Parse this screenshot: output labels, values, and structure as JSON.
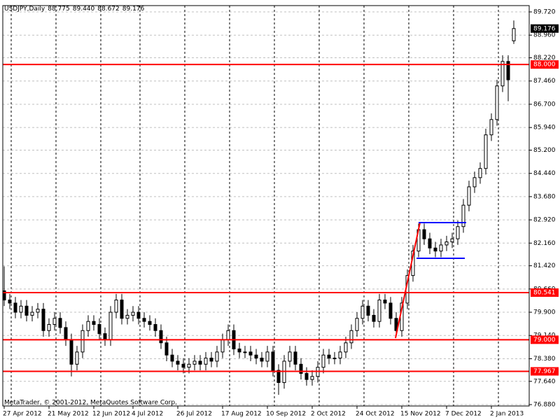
{
  "chart_data": {
    "type": "candlestick",
    "title": "USDJPY,Daily",
    "header_values": [
      {
        "value": 88.775,
        "label": "88.775"
      },
      {
        "value": 89.44,
        "label": "89.440"
      },
      {
        "value": 88.672,
        "label": "88.672"
      },
      {
        "value": 89.176,
        "label": "89.176"
      }
    ],
    "footer": "MetaTrader, © 2001-2012, MetaQuotes Software Corp.",
    "bull_color": "#ffffff",
    "bear_color": "#000000",
    "outline_color": "#000000",
    "open": [
      80.6,
      80.3,
      80.2,
      79.9,
      80.1,
      79.8,
      79.9,
      80.0,
      79.3,
      79.5,
      79.7,
      79.4,
      79.0,
      78.2,
      78.6,
      79.3,
      79.6,
      79.5,
      79.2,
      79.0,
      79.9,
      80.3,
      79.7,
      79.8,
      79.9,
      79.7,
      79.6,
      79.5,
      79.3,
      78.9,
      78.5,
      78.3,
      78.2,
      78.1,
      78.2,
      78.3,
      78.2,
      78.4,
      78.3,
      78.6,
      79.0,
      79.3,
      78.7,
      78.6,
      78.6,
      78.5,
      78.4,
      78.3,
      78.6,
      78.0,
      77.6,
      78.3,
      78.6,
      78.2,
      77.9,
      77.7,
      77.8,
      78.1,
      78.5,
      78.4,
      78.4,
      78.6,
      78.9,
      79.3,
      79.7,
      80.1,
      79.8,
      79.6,
      80.3,
      80.2,
      79.7,
      79.3,
      80.2,
      81.1,
      81.9,
      82.6,
      82.3,
      82.0,
      81.9,
      82.1,
      82.2,
      82.3,
      82.7,
      83.4,
      84.0,
      84.3,
      84.6,
      85.7,
      86.2,
      87.3,
      88.1,
      88.775
    ],
    "high": [
      81.4,
      80.5,
      80.4,
      80.3,
      80.3,
      80.1,
      80.2,
      80.2,
      79.7,
      79.9,
      79.9,
      79.6,
      79.2,
      78.8,
      79.5,
      79.8,
      79.8,
      79.7,
      79.4,
      80.1,
      80.5,
      80.5,
      80.0,
      80.1,
      80.1,
      79.9,
      79.8,
      79.7,
      79.5,
      79.1,
      78.7,
      78.5,
      78.4,
      78.4,
      78.5,
      78.5,
      78.6,
      78.6,
      78.8,
      79.2,
      79.5,
      79.5,
      78.9,
      78.8,
      78.8,
      78.7,
      78.6,
      78.8,
      78.8,
      78.2,
      78.5,
      78.8,
      78.8,
      78.4,
      78.1,
      78.0,
      78.3,
      78.7,
      78.7,
      78.6,
      78.8,
      79.1,
      79.5,
      79.9,
      80.3,
      80.3,
      80.0,
      80.5,
      80.5,
      80.4,
      79.9,
      80.4,
      81.3,
      82.1,
      82.8,
      82.8,
      82.5,
      82.2,
      82.3,
      82.4,
      82.5,
      82.9,
      83.6,
      84.2,
      84.5,
      84.8,
      85.9,
      86.4,
      87.5,
      88.3,
      88.3,
      89.44
    ],
    "low": [
      80.1,
      80.0,
      79.7,
      79.7,
      79.6,
      79.6,
      79.7,
      79.1,
      79.1,
      79.3,
      79.2,
      78.8,
      77.8,
      78.0,
      78.4,
      79.1,
      79.3,
      79.0,
      78.8,
      78.8,
      79.7,
      79.5,
      79.5,
      79.6,
      79.5,
      79.4,
      79.3,
      79.1,
      78.7,
      78.3,
      78.1,
      78.0,
      77.9,
      77.9,
      78.0,
      78.0,
      78.0,
      78.1,
      78.1,
      78.4,
      78.8,
      78.5,
      78.4,
      78.4,
      78.3,
      78.2,
      78.1,
      78.1,
      77.8,
      77.2,
      77.4,
      78.1,
      78.0,
      77.7,
      77.5,
      77.5,
      77.6,
      77.9,
      78.2,
      78.2,
      78.2,
      78.4,
      78.7,
      79.1,
      79.5,
      79.6,
      79.4,
      79.4,
      80.0,
      79.5,
      79.1,
      79.1,
      80.0,
      80.9,
      81.7,
      82.1,
      81.8,
      81.7,
      81.7,
      81.9,
      82.0,
      82.1,
      82.5,
      83.2,
      83.8,
      84.1,
      84.4,
      85.5,
      86.0,
      87.1,
      86.8,
      88.672
    ],
    "close": [
      80.3,
      80.2,
      79.9,
      80.1,
      79.8,
      79.9,
      80.0,
      79.3,
      79.5,
      79.7,
      79.4,
      79.0,
      78.2,
      78.6,
      79.3,
      79.6,
      79.5,
      79.2,
      79.0,
      79.9,
      80.3,
      79.7,
      79.8,
      79.9,
      79.7,
      79.6,
      79.5,
      79.3,
      78.9,
      78.5,
      78.3,
      78.2,
      78.1,
      78.2,
      78.3,
      78.2,
      78.4,
      78.3,
      78.6,
      79.0,
      79.3,
      78.7,
      78.6,
      78.6,
      78.5,
      78.4,
      78.3,
      78.6,
      78.0,
      77.6,
      78.3,
      78.6,
      78.2,
      77.9,
      77.7,
      77.8,
      78.1,
      78.5,
      78.4,
      78.4,
      78.6,
      78.9,
      79.3,
      79.7,
      80.1,
      79.8,
      79.6,
      80.3,
      80.2,
      79.7,
      79.3,
      80.2,
      81.1,
      81.9,
      82.6,
      82.3,
      82.0,
      81.9,
      82.1,
      82.2,
      82.3,
      82.7,
      83.4,
      84.0,
      84.3,
      84.6,
      85.7,
      86.2,
      87.3,
      88.1,
      87.5,
      89.176
    ],
    "ylim": [
      76.834,
      89.926
    ],
    "yticks": [
      {
        "value": 89.72,
        "label": "89.720"
      },
      {
        "value": 88.96,
        "label": "88.960"
      },
      {
        "value": 88.22,
        "label": "88.220"
      },
      {
        "value": 87.46,
        "label": "87.460"
      },
      {
        "value": 86.7,
        "label": "86.700"
      },
      {
        "value": 85.94,
        "label": "85.940"
      },
      {
        "value": 85.2,
        "label": "85.200"
      },
      {
        "value": 84.44,
        "label": "84.440"
      },
      {
        "value": 83.68,
        "label": "83.680"
      },
      {
        "value": 82.92,
        "label": "82.920"
      },
      {
        "value": 82.16,
        "label": "82.160"
      },
      {
        "value": 81.42,
        "label": "81.420"
      },
      {
        "value": 80.66,
        "label": "80.660"
      },
      {
        "value": 79.9,
        "label": "79.900"
      },
      {
        "value": 79.14,
        "label": "79.140"
      },
      {
        "value": 78.38,
        "label": "78.380"
      },
      {
        "value": 77.64,
        "label": "77.640"
      },
      {
        "value": 76.88,
        "label": "76.880"
      }
    ],
    "xticks": [
      {
        "value": 0,
        "label": "27 Apr 2012"
      },
      {
        "value": 8,
        "label": "21 May 2012"
      },
      {
        "value": 16,
        "label": "12 Jun 2012"
      },
      {
        "value": 23,
        "label": "4 Jul 2012"
      },
      {
        "value": 31,
        "label": "26 Jul 2012"
      },
      {
        "value": 39,
        "label": "17 Aug 2012"
      },
      {
        "value": 47,
        "label": "10 Sep 2012"
      },
      {
        "value": 55,
        "label": "2 Oct 2012"
      },
      {
        "value": 63,
        "label": "24 Oct 2012"
      },
      {
        "value": 71,
        "label": "15 Nov 2012"
      },
      {
        "value": 79,
        "label": "7 Dec 2012"
      },
      {
        "value": 87,
        "label": "2 Jan 2013"
      }
    ],
    "hlines": [
      {
        "value": 88.0,
        "label": "88.000"
      },
      {
        "value": 80.541,
        "label": "80.541"
      },
      {
        "value": 79.0,
        "label": "79.000"
      },
      {
        "value": 77.967,
        "label": "77.967"
      }
    ],
    "hline_color": "#ff0000",
    "current_price": {
      "value": 89.176,
      "label": "89.176"
    },
    "grid": true
  }
}
